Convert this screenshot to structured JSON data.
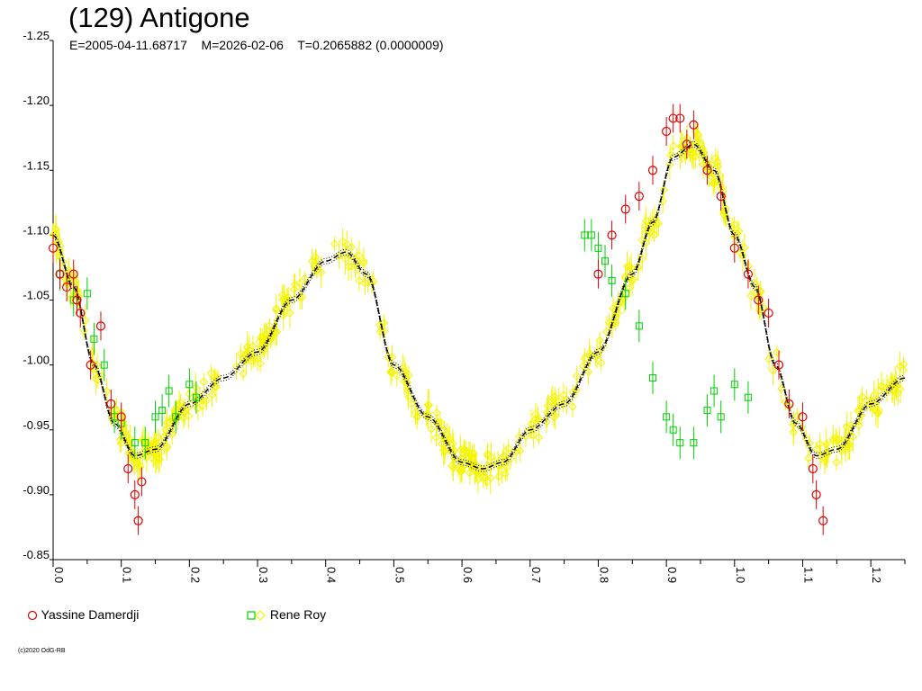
{
  "header": {
    "title": "(129) Antigone",
    "subtitle": "E=2005-04-11.68717    M=2026-02-06    T=0.2065882 (0.0000009)"
  },
  "legend": [
    {
      "label": "Yassine Damerdji",
      "symbol": "circle",
      "color": "#e00000"
    },
    {
      "label": "Rene Roy",
      "symbol": "square+diamond",
      "color": "#00d000",
      "color2": "#ffff00"
    }
  ],
  "footer": {
    "copyright": "(c)2020 OdG-RB"
  },
  "colors": {
    "yassine": "#e00000",
    "rene_green": "#00d000",
    "rene_yellow": "#f5f500",
    "fit": "#000000"
  },
  "chart_data": {
    "type": "scatter",
    "xlabel": "",
    "ylabel": "",
    "xlim": [
      0.0,
      1.25
    ],
    "ylim": [
      -1.25,
      -0.85
    ],
    "y_reversed": true,
    "x_ticks": [
      "0.0",
      "0.1",
      "0.2",
      "0.3",
      "0.4",
      "0.5",
      "0.6",
      "0.7",
      "0.8",
      "0.9",
      "1.0",
      "1.1",
      "1.2"
    ],
    "y_ticks": [
      "-1.25",
      "-1.20",
      "-1.15",
      "-1.10",
      "-1.05",
      "-1.00",
      "-0.95",
      "-0.90",
      "-0.85"
    ],
    "fit_curve": {
      "x": [
        0.0,
        0.03,
        0.06,
        0.09,
        0.12,
        0.15,
        0.2,
        0.25,
        0.3,
        0.35,
        0.4,
        0.43,
        0.46,
        0.5,
        0.55,
        0.6,
        0.63,
        0.66,
        0.7,
        0.75,
        0.8,
        0.85,
        0.88,
        0.91,
        0.94,
        0.97,
        1.0,
        1.03,
        1.06,
        1.09,
        1.12,
        1.15,
        1.2,
        1.25
      ],
      "y": [
        -1.1,
        -1.06,
        -1.0,
        -0.955,
        -0.93,
        -0.935,
        -0.97,
        -0.99,
        -1.01,
        -1.05,
        -1.08,
        -1.087,
        -1.07,
        -1.0,
        -0.96,
        -0.925,
        -0.92,
        -0.925,
        -0.95,
        -0.97,
        -1.01,
        -1.07,
        -1.11,
        -1.16,
        -1.17,
        -1.15,
        -1.1,
        -1.06,
        -1.0,
        -0.955,
        -0.93,
        -0.935,
        -0.97,
        -0.99
      ]
    },
    "series": [
      {
        "name": "Yassine Damerdji",
        "x": [
          0.0,
          0.01,
          0.02,
          0.03,
          0.035,
          0.04,
          0.055,
          0.07,
          0.085,
          0.1,
          0.11,
          0.12,
          0.125,
          0.13,
          0.8,
          0.82,
          0.84,
          0.86,
          0.88,
          0.9,
          0.91,
          0.92,
          0.93,
          0.94,
          0.96,
          0.98,
          1.0,
          1.02,
          1.035,
          1.05,
          1.065,
          1.08,
          1.1,
          1.115,
          1.12,
          1.13
        ],
        "y": [
          -1.09,
          -1.07,
          -1.06,
          -1.07,
          -1.05,
          -1.04,
          -1.0,
          -1.03,
          -0.97,
          -0.96,
          -0.92,
          -0.9,
          -0.88,
          -0.91,
          -1.07,
          -1.1,
          -1.12,
          -1.13,
          -1.15,
          -1.18,
          -1.19,
          -1.19,
          -1.17,
          -1.185,
          -1.15,
          -1.13,
          -1.09,
          -1.07,
          -1.05,
          -1.04,
          -1.0,
          -0.97,
          -0.96,
          -0.92,
          -0.9,
          -0.88
        ]
      },
      {
        "name": "Rene Roy (green)",
        "x": [
          0.01,
          0.03,
          0.05,
          0.06,
          0.075,
          0.09,
          0.1,
          0.12,
          0.135,
          0.15,
          0.16,
          0.17,
          0.18,
          0.2,
          0.21,
          0.78,
          0.79,
          0.8,
          0.81,
          0.82,
          0.84,
          0.86,
          0.88,
          0.9,
          0.91,
          0.92,
          0.94,
          0.96,
          0.97,
          0.98,
          1.0,
          1.02
        ],
        "y": [
          -1.07,
          -1.05,
          -1.055,
          -1.02,
          -1.0,
          -0.96,
          -0.955,
          -0.94,
          -0.94,
          -0.96,
          -0.965,
          -0.98,
          -0.96,
          -0.985,
          -0.975,
          -1.1,
          -1.1,
          -1.09,
          -1.08,
          -1.065,
          -1.055,
          -1.03,
          -0.99,
          -0.96,
          -0.95,
          -0.94,
          -0.94,
          -0.965,
          -0.98,
          -0.96,
          -0.985,
          -0.975
        ]
      }
    ],
    "rene_yellow_density": "dense band following the fit curve"
  }
}
